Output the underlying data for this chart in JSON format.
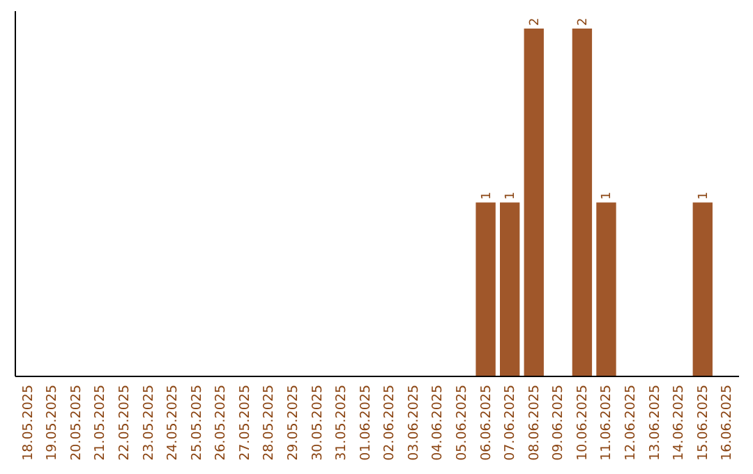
{
  "chart_data": {
    "type": "bar",
    "categories": [
      "18.05.2025",
      "19.05.2025",
      "20.05.2025",
      "21.05.2025",
      "22.05.2025",
      "23.05.2025",
      "24.05.2025",
      "25.05.2025",
      "26.05.2025",
      "27.05.2025",
      "28.05.2025",
      "29.05.2025",
      "30.05.2025",
      "31.05.2025",
      "01.06.2025",
      "02.06.2025",
      "03.06.2025",
      "04.06.2025",
      "05.06.2025",
      "06.06.2025",
      "07.06.2025",
      "08.06.2025",
      "09.06.2025",
      "10.06.2025",
      "11.06.2025",
      "12.06.2025",
      "13.06.2025",
      "14.06.2025",
      "15.06.2025",
      "16.06.2025"
    ],
    "values": [
      null,
      null,
      null,
      null,
      null,
      null,
      null,
      null,
      null,
      null,
      null,
      null,
      null,
      null,
      null,
      null,
      null,
      null,
      null,
      1,
      1,
      2,
      null,
      2,
      1,
      null,
      null,
      null,
      1,
      null
    ],
    "data_labels": true,
    "color": "#a0572a",
    "ylim": [
      0,
      2.1
    ],
    "tick_labels": "x"
  }
}
